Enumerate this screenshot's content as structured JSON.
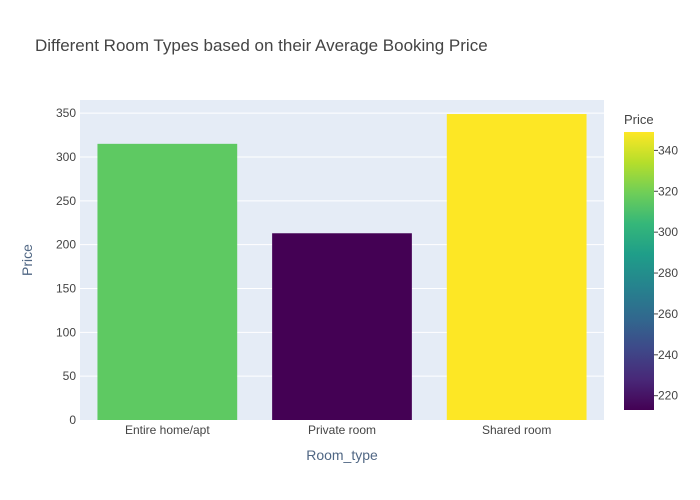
{
  "chart_data": {
    "type": "bar",
    "title": "Different Room Types based on their Average Booking Price",
    "xlabel": "Room_type",
    "ylabel": "Price",
    "categories": [
      "Entire home/apt",
      "Private room",
      "Shared room"
    ],
    "values": [
      315,
      213,
      349
    ],
    "ylim": [
      0,
      365
    ],
    "yticks": [
      0,
      50,
      100,
      150,
      200,
      250,
      300,
      350
    ],
    "grid": true,
    "colorbar": {
      "title": "Price",
      "range": [
        213,
        349
      ],
      "ticks": [
        220,
        240,
        260,
        280,
        300,
        320,
        340
      ],
      "colorscale": "Viridis"
    },
    "colors": {
      "plot_bg": "#e5ecf6",
      "grid": "#ffffff",
      "bars": [
        "#5ec962",
        "#440154",
        "#fde725"
      ]
    }
  }
}
